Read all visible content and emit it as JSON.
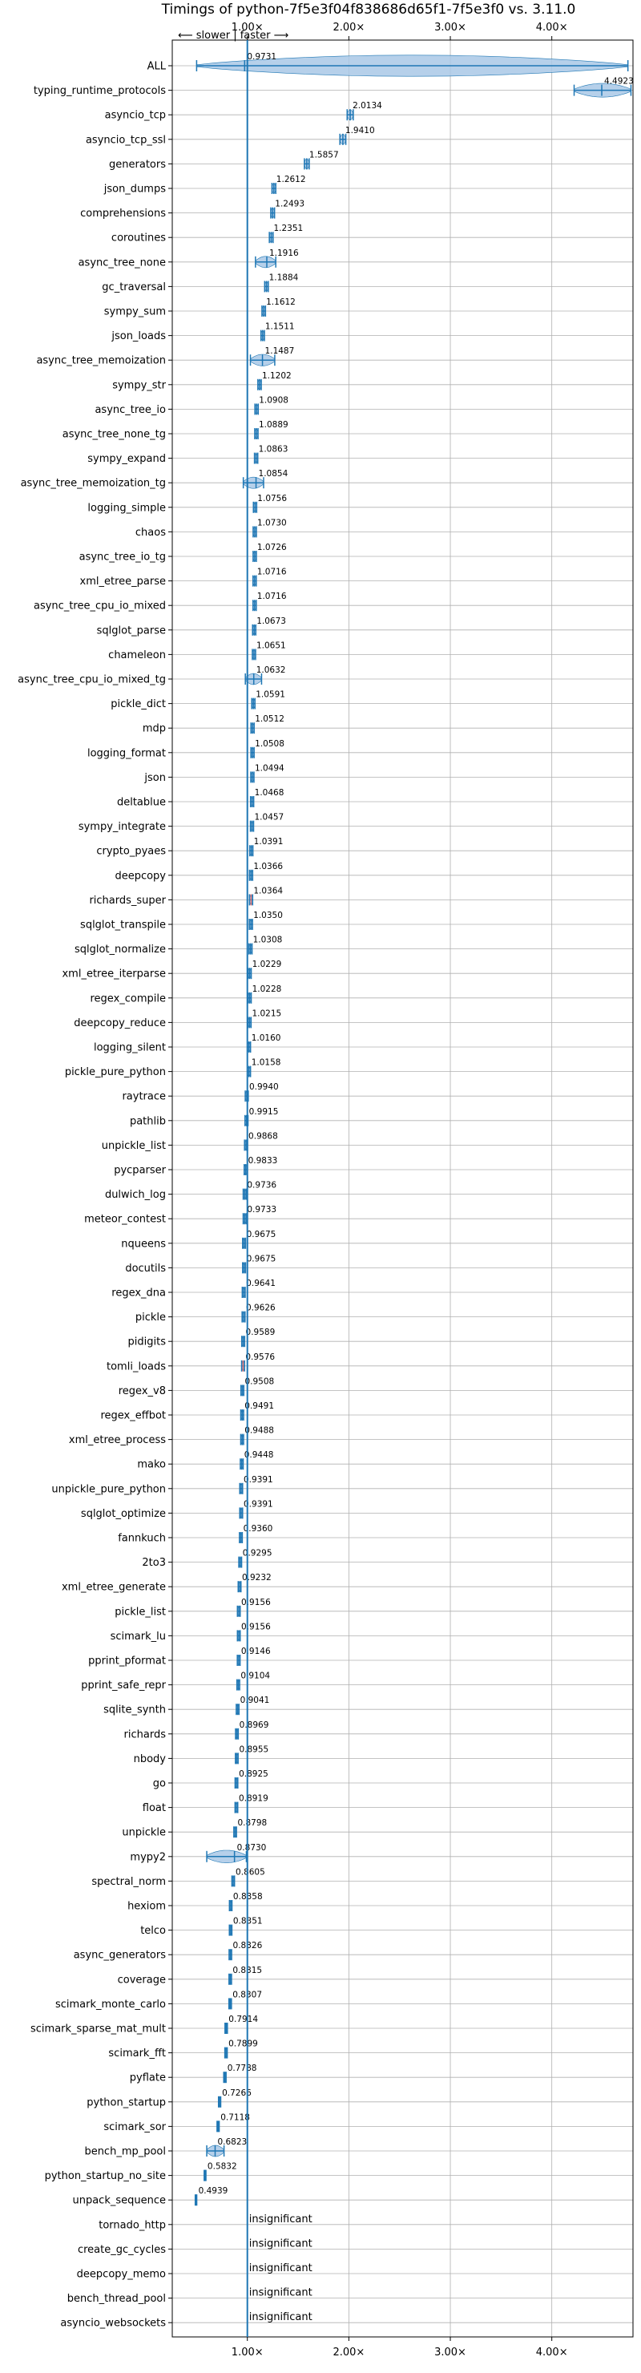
{
  "chart_data": {
    "type": "violin",
    "title": "Timings of python-7f5e3f04f838686d65f1-7f5e3f0 vs. 3.11.0",
    "direction_label": "⟵ slower | faster ⟶",
    "xlim": [
      0.26,
      4.8
    ],
    "reference_line": 1.0,
    "x_ticks": [
      1.0,
      2.0,
      3.0,
      4.0
    ],
    "x_tick_labels": [
      "1.00×",
      "2.00×",
      "3.00×",
      "4.00×"
    ],
    "grid": true,
    "insignificant_label": "insignificant",
    "categories": [
      "ALL",
      "typing_runtime_protocols",
      "asyncio_tcp",
      "asyncio_tcp_ssl",
      "generators",
      "json_dumps",
      "comprehensions",
      "coroutines",
      "async_tree_none",
      "gc_traversal",
      "sympy_sum",
      "json_loads",
      "async_tree_memoization",
      "sympy_str",
      "async_tree_io",
      "async_tree_none_tg",
      "sympy_expand",
      "async_tree_memoization_tg",
      "logging_simple",
      "chaos",
      "async_tree_io_tg",
      "xml_etree_parse",
      "async_tree_cpu_io_mixed",
      "sqlglot_parse",
      "chameleon",
      "async_tree_cpu_io_mixed_tg",
      "pickle_dict",
      "mdp",
      "logging_format",
      "json",
      "deltablue",
      "sympy_integrate",
      "crypto_pyaes",
      "deepcopy",
      "richards_super",
      "sqlglot_transpile",
      "sqlglot_normalize",
      "xml_etree_iterparse",
      "regex_compile",
      "deepcopy_reduce",
      "logging_silent",
      "pickle_pure_python",
      "raytrace",
      "pathlib",
      "unpickle_list",
      "pycparser",
      "dulwich_log",
      "meteor_contest",
      "nqueens",
      "docutils",
      "regex_dna",
      "pickle",
      "pidigits",
      "tomli_loads",
      "regex_v8",
      "regex_effbot",
      "xml_etree_process",
      "mako",
      "unpickle_pure_python",
      "sqlglot_optimize",
      "fannkuch",
      "2to3",
      "xml_etree_generate",
      "pickle_list",
      "scimark_lu",
      "pprint_pformat",
      "pprint_safe_repr",
      "sqlite_synth",
      "richards",
      "nbody",
      "go",
      "float",
      "unpickle",
      "mypy2",
      "spectral_norm",
      "hexiom",
      "telco",
      "async_generators",
      "coverage",
      "scimark_monte_carlo",
      "scimark_sparse_mat_mult",
      "scimark_fft",
      "pyflate",
      "python_startup",
      "scimark_sor",
      "bench_mp_pool",
      "python_startup_no_site",
      "unpack_sequence",
      "tornado_http",
      "create_gc_cycles",
      "deepcopy_memo",
      "bench_thread_pool",
      "asyncio_websockets"
    ],
    "values": [
      0.9731,
      4.4923,
      2.0134,
      1.941,
      1.5857,
      1.2612,
      1.2493,
      1.2351,
      1.1916,
      1.1884,
      1.1612,
      1.1511,
      1.1487,
      1.1202,
      1.0908,
      1.0889,
      1.0863,
      1.0854,
      1.0756,
      1.073,
      1.0726,
      1.0716,
      1.0716,
      1.0673,
      1.0651,
      1.0632,
      1.0591,
      1.0512,
      1.0508,
      1.0494,
      1.0468,
      1.0457,
      1.0391,
      1.0366,
      1.0364,
      1.035,
      1.0308,
      1.0229,
      1.0228,
      1.0215,
      1.016,
      1.0158,
      0.994,
      0.9915,
      0.9868,
      0.9833,
      0.9736,
      0.9733,
      0.9675,
      0.9675,
      0.9641,
      0.9626,
      0.9589,
      0.9576,
      0.9508,
      0.9491,
      0.9488,
      0.9448,
      0.9391,
      0.9391,
      0.936,
      0.9295,
      0.9232,
      0.9156,
      0.9156,
      0.9146,
      0.9104,
      0.9041,
      0.8969,
      0.8955,
      0.8925,
      0.8919,
      0.8798,
      0.873,
      0.8605,
      0.8358,
      0.8351,
      0.8326,
      0.8315,
      0.8307,
      0.7914,
      0.7899,
      0.7788,
      0.7266,
      0.7118,
      0.6823,
      0.5832,
      0.4939,
      null,
      null,
      null,
      null,
      null
    ],
    "value_labels": [
      "0.9731",
      "4.4923",
      "2.0134",
      "1.9410",
      "1.5857",
      "1.2612",
      "1.2493",
      "1.2351",
      "1.1916",
      "1.1884",
      "1.1612",
      "1.1511",
      "1.1487",
      "1.1202",
      "1.0908",
      "1.0889",
      "1.0863",
      "1.0854",
      "1.0756",
      "1.0730",
      "1.0726",
      "1.0716",
      "1.0716",
      "1.0673",
      "1.0651",
      "1.0632",
      "1.0591",
      "1.0512",
      "1.0508",
      "1.0494",
      "1.0468",
      "1.0457",
      "1.0391",
      "1.0366",
      "1.0364",
      "1.0350",
      "1.0308",
      "1.0229",
      "1.0228",
      "1.0215",
      "1.0160",
      "1.0158",
      "0.9940",
      "0.9915",
      "0.9868",
      "0.9833",
      "0.9736",
      "0.9733",
      "0.9675",
      "0.9675",
      "0.9641",
      "0.9626",
      "0.9589",
      "0.9576",
      "0.9508",
      "0.9491",
      "0.9488",
      "0.9448",
      "0.9391",
      "0.9391",
      "0.9360",
      "0.9295",
      "0.9232",
      "0.9156",
      "0.9156",
      "0.9146",
      "0.9104",
      "0.9041",
      "0.8969",
      "0.8955",
      "0.8925",
      "0.8919",
      "0.8798",
      "0.8730",
      "0.8605",
      "0.8358",
      "0.8351",
      "0.8326",
      "0.8315",
      "0.8307",
      "0.7914",
      "0.7899",
      "0.7788",
      "0.7266",
      "0.7118",
      "0.6823",
      "0.5832",
      "0.4939",
      "",
      "",
      "",
      "",
      ""
    ],
    "ranges": {
      "ALL": [
        0.5,
        4.75
      ],
      "typing_runtime_protocols": [
        4.22,
        4.78
      ],
      "async_tree_none": [
        1.08,
        1.28
      ],
      "async_tree_memoization": [
        1.03,
        1.27
      ],
      "async_tree_memoization_tg": [
        0.96,
        1.16
      ],
      "async_tree_cpu_io_mixed_tg": [
        0.98,
        1.14
      ],
      "mypy2": [
        0.6,
        0.99
      ],
      "bench_mp_pool": [
        0.6,
        0.77
      ]
    },
    "highlighted_categories": [
      "richards_super",
      "tomli_loads"
    ],
    "colors": {
      "violin_fill": "#a9c8e6",
      "violin_edge": "#1f77b4",
      "marker": "#1f77b4",
      "reference": "#1f77b4",
      "grid": "#b0b0b0",
      "highlight": "#e07070"
    }
  }
}
